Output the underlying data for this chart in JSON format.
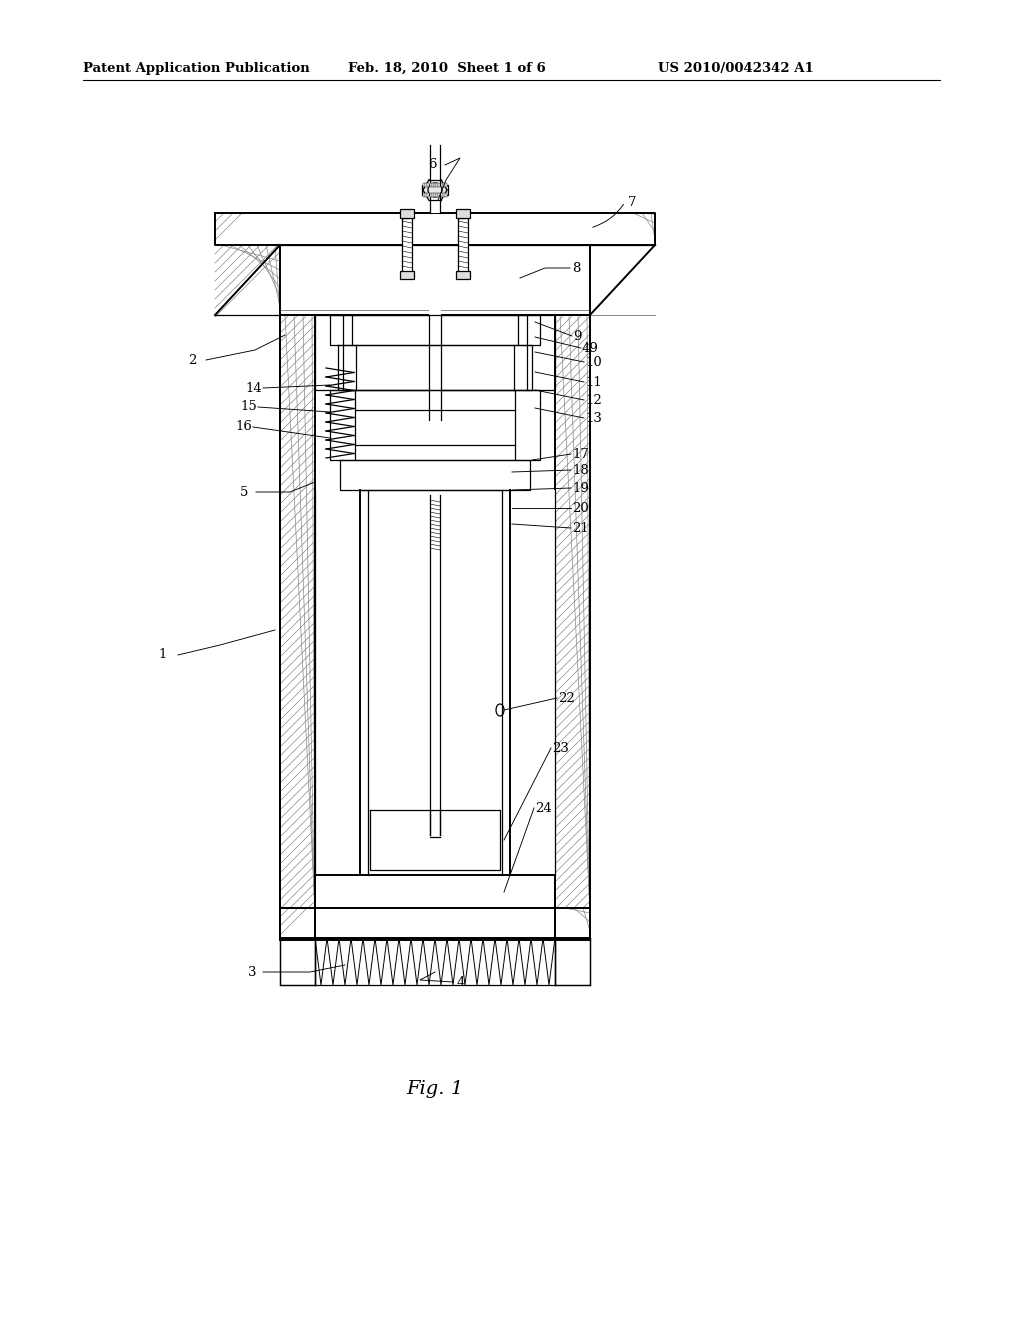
{
  "header_left": "Patent Application Publication",
  "header_mid": "Feb. 18, 2010  Sheet 1 of 6",
  "header_right": "US 2010/0042342 A1",
  "fig_caption": "Fig. 1",
  "bg": "#ffffff",
  "lc": "#000000",
  "hc": "#888888"
}
